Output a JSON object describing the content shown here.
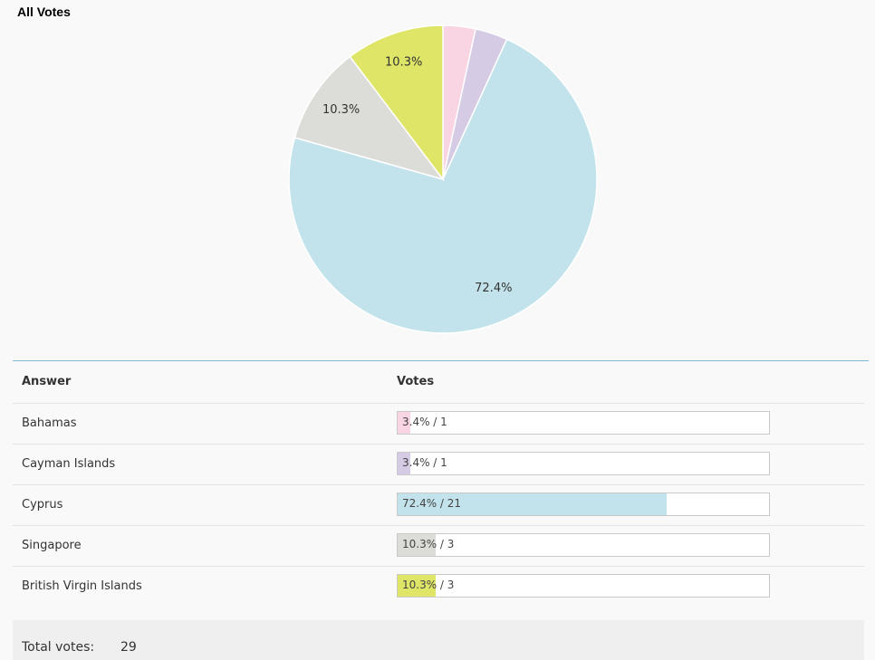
{
  "chart_data": {
    "type": "pie",
    "title": "All Votes",
    "series": [
      {
        "name": "Bahamas",
        "percent": 3.4,
        "votes": 1,
        "color": "#f9d4e3",
        "label": ""
      },
      {
        "name": "Cayman Islands",
        "percent": 3.4,
        "votes": 1,
        "color": "#d5cbe5",
        "label": ""
      },
      {
        "name": "Cyprus",
        "percent": 72.4,
        "votes": 21,
        "color": "#c2e3eb",
        "label": "72.4%"
      },
      {
        "name": "Singapore",
        "percent": 10.3,
        "votes": 3,
        "color": "#dcdcd9",
        "label": "10.3%"
      },
      {
        "name": "British Virgin Islands",
        "percent": 10.3,
        "votes": 3,
        "color": "#dfe567",
        "label": "10.3%"
      }
    ]
  },
  "table": {
    "answer_header": "Answer",
    "votes_header": "Votes",
    "rows": [
      {
        "answer": "Bahamas",
        "votes_text": "3.4% / 1"
      },
      {
        "answer": "Cayman Islands",
        "votes_text": "3.4% / 1"
      },
      {
        "answer": "Cyprus",
        "votes_text": "72.4% / 21"
      },
      {
        "answer": "Singapore",
        "votes_text": "10.3% / 3"
      },
      {
        "answer": "British Virgin Islands",
        "votes_text": "10.3% / 3"
      }
    ]
  },
  "total": {
    "label": "Total votes:",
    "value": "29"
  }
}
